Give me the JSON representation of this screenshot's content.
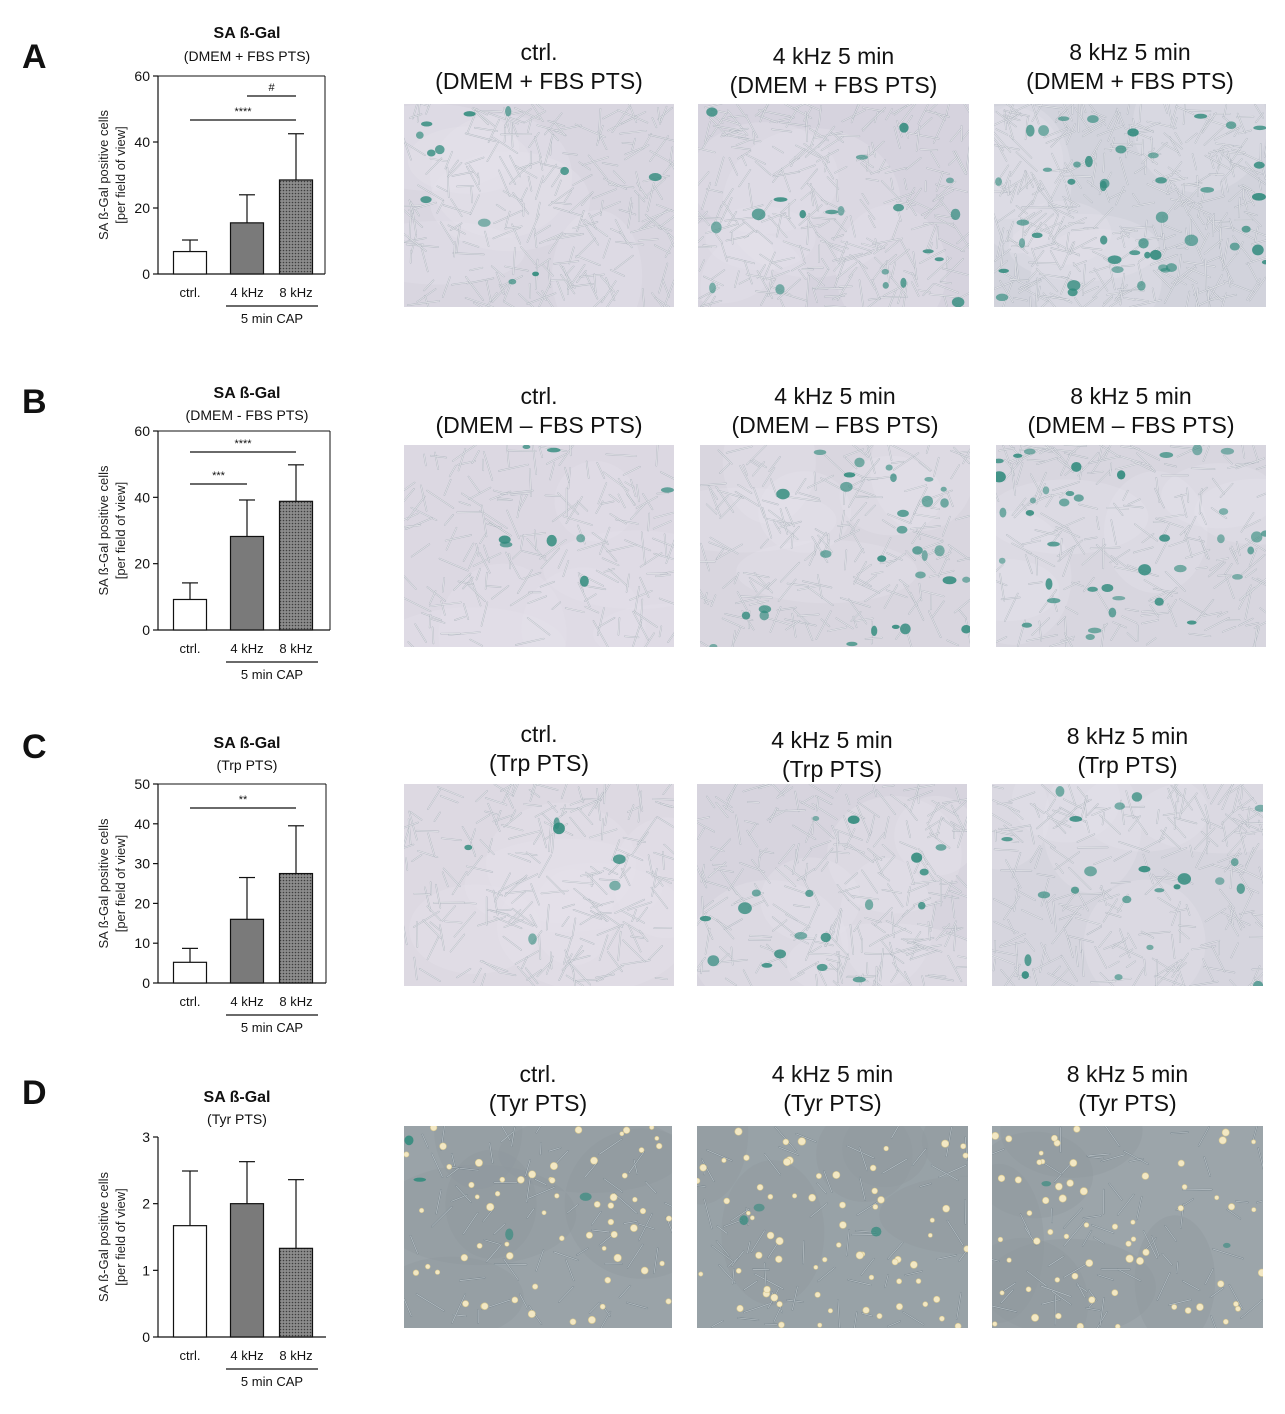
{
  "panels": [
    {
      "letter": "A",
      "title": "SA ß-Gal",
      "subtitle": "(DMEM + FBS PTS)",
      "images": [
        {
          "line1": "ctrl.",
          "line2": "(DMEM + FBS PTS)"
        },
        {
          "line1": "4 kHz 5 min",
          "line2": "(DMEM + FBS PTS)"
        },
        {
          "line1": "8 kHz 5 min",
          "line2": "(DMEM + FBS PTS)"
        }
      ]
    },
    {
      "letter": "B",
      "title": "SA ß-Gal",
      "subtitle": "(DMEM - FBS PTS)",
      "images": [
        {
          "line1": "ctrl.",
          "line2": "(DMEM – FBS PTS)"
        },
        {
          "line1": "4 kHz 5 min",
          "line2": "(DMEM – FBS PTS)"
        },
        {
          "line1": "8 kHz 5 min",
          "line2": "(DMEM – FBS PTS)"
        }
      ]
    },
    {
      "letter": "C",
      "title": "SA ß-Gal",
      "subtitle": "(Trp PTS)",
      "images": [
        {
          "line1": "ctrl.",
          "line2": "(Trp PTS)"
        },
        {
          "line1": "4 kHz 5 min",
          "line2": "(Trp PTS)"
        },
        {
          "line1": "8 kHz 5 min",
          "line2": "(Trp PTS)"
        }
      ]
    },
    {
      "letter": "D",
      "title": "SA ß-Gal",
      "subtitle": "(Tyr PTS)",
      "images": [
        {
          "line1": "ctrl.",
          "line2": "(Tyr PTS)"
        },
        {
          "line1": "4 kHz 5 min",
          "line2": "(Tyr PTS)"
        },
        {
          "line1": "8 kHz 5 min",
          "line2": "(Tyr PTS)"
        }
      ]
    }
  ],
  "chart_data": [
    {
      "type": "bar",
      "title": "SA ß-Gal",
      "subtitle": "(DMEM + FBS PTS)",
      "ylabel": [
        "SA ß-Gal positive cells",
        "[per field of view]"
      ],
      "xgroup_label": "5 min CAP",
      "categories": [
        "ctrl.",
        "4 kHz",
        "8 kHz"
      ],
      "values": [
        6.8,
        15.5,
        28.5
      ],
      "errors": [
        3.5,
        8.5,
        14
      ],
      "fills": [
        "white",
        "#7a7a7a",
        "dotted"
      ],
      "ylim": [
        0,
        60
      ],
      "yticks": [
        0,
        20,
        40,
        60
      ],
      "significance": [
        {
          "from": 0,
          "to": 2,
          "label": "****"
        },
        {
          "from": 1,
          "to": 2,
          "label": "#"
        }
      ]
    },
    {
      "type": "bar",
      "title": "SA ß-Gal",
      "subtitle": "(DMEM - FBS PTS)",
      "ylabel": [
        "SA ß-Gal positive cells",
        "[per field of view]"
      ],
      "xgroup_label": "5 min CAP",
      "categories": [
        "ctrl.",
        "4 kHz",
        "8 kHz"
      ],
      "values": [
        9.2,
        28.2,
        38.8
      ],
      "errors": [
        5,
        11,
        11
      ],
      "fills": [
        "white",
        "#7a7a7a",
        "dotted"
      ],
      "ylim": [
        0,
        60
      ],
      "yticks": [
        0,
        20,
        40,
        60
      ],
      "significance": [
        {
          "from": 0,
          "to": 1,
          "label": "***"
        },
        {
          "from": 0,
          "to": 2,
          "label": "****"
        }
      ]
    },
    {
      "type": "bar",
      "title": "SA ß-Gal",
      "subtitle": "(Trp PTS)",
      "ylabel": [
        "SA ß-Gal positive cells",
        "[per field of view]"
      ],
      "xgroup_label": "5 min CAP",
      "categories": [
        "ctrl.",
        "4 kHz",
        "8 kHz"
      ],
      "values": [
        5.2,
        16,
        27.5
      ],
      "errors": [
        3.5,
        10.5,
        12
      ],
      "fills": [
        "white",
        "#7a7a7a",
        "dotted"
      ],
      "ylim": [
        0,
        50
      ],
      "yticks": [
        0,
        10,
        20,
        30,
        40,
        50
      ],
      "significance": [
        {
          "from": 0,
          "to": 2,
          "label": "**"
        }
      ]
    },
    {
      "type": "bar",
      "title": "SA ß-Gal",
      "subtitle": "(Tyr PTS)",
      "ylabel": [
        "SA ß-Gal positive cells",
        "[per field of view]"
      ],
      "xgroup_label": "5 min CAP",
      "categories": [
        "ctrl.",
        "4 kHz",
        "8 kHz"
      ],
      "values": [
        1.67,
        2.0,
        1.33
      ],
      "errors": [
        0.82,
        0.63,
        1.03
      ],
      "fills": [
        "white",
        "#7a7a7a",
        "dotted"
      ],
      "ylim": [
        0,
        3
      ],
      "yticks": [
        0,
        1,
        2,
        3
      ],
      "significance": []
    }
  ]
}
